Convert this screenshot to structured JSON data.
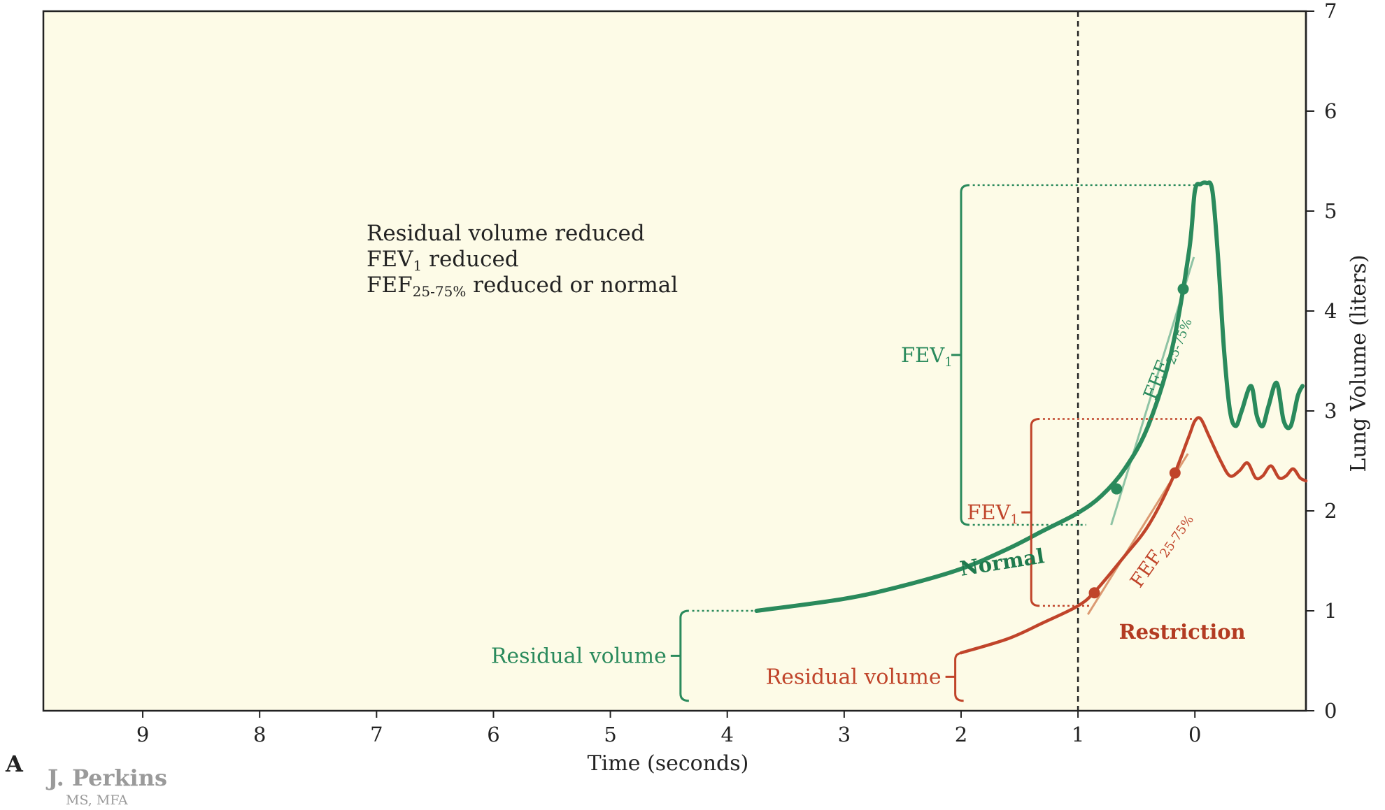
{
  "panel_letter": "A",
  "credit": {
    "name": "J. Perkins",
    "degree": "MS, MFA"
  },
  "annotation": {
    "line1": "Residual volume reduced",
    "line2_prefix": "FEV",
    "line2_sub": "1",
    "line2_suffix": " reduced",
    "line3_prefix": "FEF",
    "line3_sub": "25-75%",
    "line3_suffix": " reduced or normal"
  },
  "colors": {
    "background": "#fdfbe7",
    "normal": "#2a8a5c",
    "restriction": "#c0442a",
    "normal_light": "#8fc4a5",
    "restriction_light": "#dc9a72",
    "axis": "#222222",
    "normal_label": "#1f7a4d",
    "restriction_label": "#b33b22"
  },
  "chart_data": {
    "type": "line",
    "xlabel": "Time (seconds)",
    "ylabel": "Lung Volume (liters)",
    "x_reversed": true,
    "xlim": [
      9.85,
      -0.95
    ],
    "ylim": [
      0,
      7
    ],
    "x_ticks": [
      9,
      8,
      7,
      6,
      5,
      4,
      3,
      2,
      1,
      0
    ],
    "y_ticks": [
      0,
      1,
      2,
      3,
      4,
      5,
      6,
      7
    ],
    "y_axis_side": "right",
    "reference_line_x": 1,
    "series": [
      {
        "name": "Normal",
        "points": [
          [
            3.75,
            1.0
          ],
          [
            3.0,
            1.12
          ],
          [
            2.5,
            1.25
          ],
          [
            2.0,
            1.42
          ],
          [
            1.6,
            1.62
          ],
          [
            1.3,
            1.8
          ],
          [
            1.0,
            1.98
          ],
          [
            0.8,
            2.15
          ],
          [
            0.6,
            2.42
          ],
          [
            0.4,
            2.85
          ],
          [
            0.2,
            3.6
          ],
          [
            0.05,
            4.6
          ],
          [
            0.0,
            5.2
          ],
          [
            -0.05,
            5.27
          ],
          [
            -0.1,
            5.28
          ],
          [
            -0.15,
            5.2
          ],
          [
            -0.2,
            4.5
          ],
          [
            -0.25,
            3.6
          ],
          [
            -0.3,
            3.0
          ],
          [
            -0.35,
            2.85
          ],
          [
            -0.4,
            3.0
          ],
          [
            -0.48,
            3.25
          ],
          [
            -0.53,
            2.95
          ],
          [
            -0.58,
            2.85
          ],
          [
            -0.63,
            3.05
          ],
          [
            -0.7,
            3.28
          ],
          [
            -0.76,
            2.9
          ],
          [
            -0.82,
            2.85
          ],
          [
            -0.88,
            3.15
          ],
          [
            -0.92,
            3.25
          ]
        ],
        "fef_points": [
          [
            0.67,
            2.22
          ],
          [
            0.1,
            4.22
          ]
        ],
        "fev1_range": [
          1.86,
          5.26
        ],
        "residual_volume": [
          0.1,
          1.0
        ]
      },
      {
        "name": "Restriction",
        "points": [
          [
            2.0,
            0.58
          ],
          [
            1.6,
            0.72
          ],
          [
            1.3,
            0.88
          ],
          [
            1.0,
            1.05
          ],
          [
            0.85,
            1.2
          ],
          [
            0.6,
            1.55
          ],
          [
            0.4,
            1.85
          ],
          [
            0.2,
            2.3
          ],
          [
            0.05,
            2.75
          ],
          [
            0.0,
            2.9
          ],
          [
            -0.05,
            2.92
          ],
          [
            -0.12,
            2.75
          ],
          [
            -0.22,
            2.5
          ],
          [
            -0.3,
            2.35
          ],
          [
            -0.38,
            2.4
          ],
          [
            -0.45,
            2.48
          ],
          [
            -0.52,
            2.33
          ],
          [
            -0.58,
            2.35
          ],
          [
            -0.65,
            2.45
          ],
          [
            -0.72,
            2.33
          ],
          [
            -0.78,
            2.35
          ],
          [
            -0.84,
            2.42
          ],
          [
            -0.9,
            2.33
          ],
          [
            -0.95,
            2.3
          ]
        ],
        "fef_points": [
          [
            0.86,
            1.18
          ],
          [
            0.17,
            2.38
          ]
        ],
        "fev1_range": [
          1.05,
          2.92
        ],
        "residual_volume": [
          0.1,
          0.58
        ]
      }
    ],
    "annotations": [
      {
        "text": "Normal",
        "series": "Normal"
      },
      {
        "text": "Restriction",
        "series": "Restriction"
      },
      {
        "text": "FEV",
        "sub": "1",
        "series": "Normal"
      },
      {
        "text": "FEV",
        "sub": "1",
        "series": "Restriction"
      },
      {
        "text": "FEF",
        "sub": "25-75%",
        "series": "Normal"
      },
      {
        "text": "FEF",
        "sub": "25-75%",
        "series": "Restriction"
      },
      {
        "text": "Residual volume",
        "series": "Normal"
      },
      {
        "text": "Residual volume",
        "series": "Restriction"
      }
    ]
  }
}
